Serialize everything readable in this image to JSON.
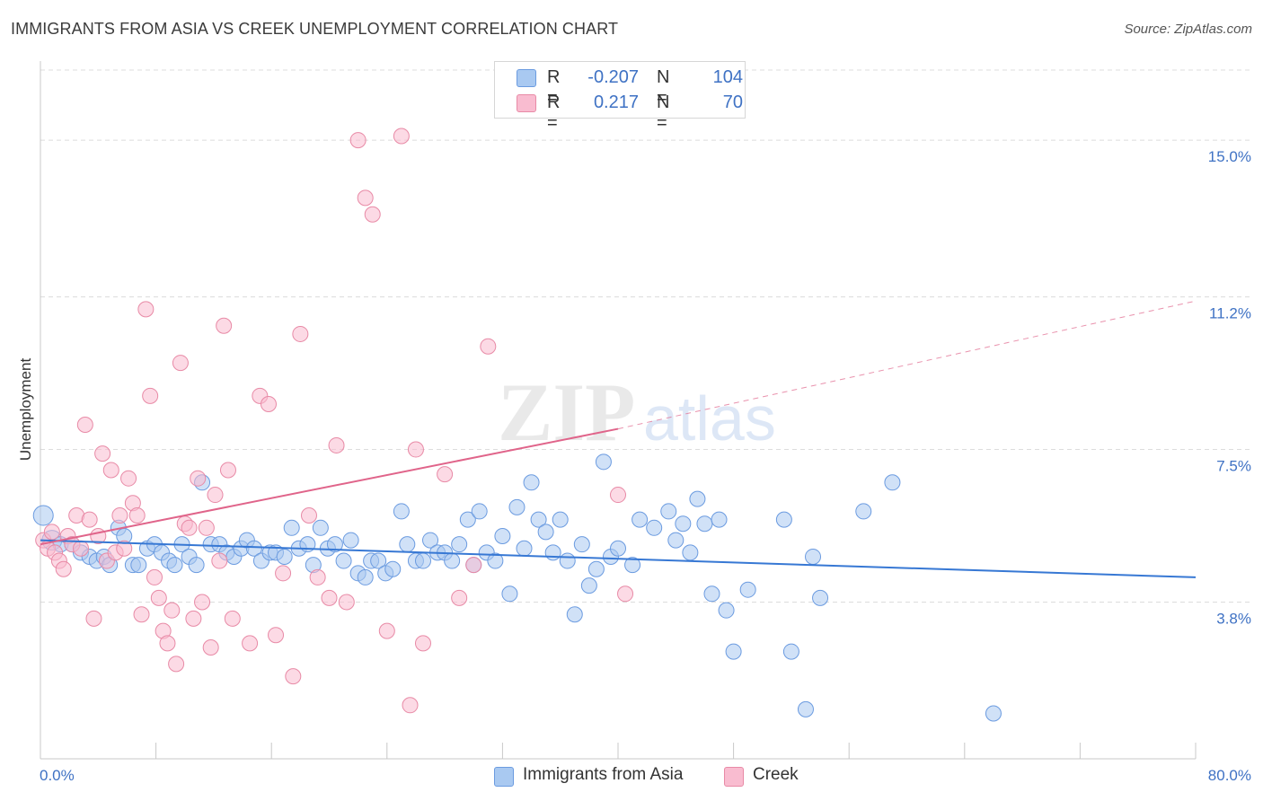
{
  "title": "IMMIGRANTS FROM ASIA VS CREEK UNEMPLOYMENT CORRELATION CHART",
  "source": "Source: ZipAtlas.com",
  "watermark": {
    "zip": "ZIP",
    "atlas": "atlas"
  },
  "legend": {
    "r_key": "R =",
    "n_key": "N =",
    "rows": [
      {
        "name": "Immigrants from Asia",
        "r": "-0.207",
        "n": "104",
        "color": "#a9c9f1",
        "border": "#6b9be0"
      },
      {
        "name": "Creek",
        "r": "0.217",
        "n": "70",
        "color": "#f9bcd0",
        "border": "#e88aa6"
      }
    ]
  },
  "chart_data": {
    "type": "scatter",
    "title": "IMMIGRANTS FROM ASIA VS CREEK UNEMPLOYMENT CORRELATION CHART",
    "xlabel": "",
    "ylabel": "Unemployment",
    "xlim": [
      0,
      80
    ],
    "ylim": [
      0,
      16
    ],
    "x_tick_labels": [
      "0.0%",
      "80.0%"
    ],
    "y_ticks": [
      3.8,
      7.5,
      11.2,
      15.0
    ],
    "y_tick_labels": [
      "3.8%",
      "7.5%",
      "11.2%",
      "15.0%"
    ],
    "grid": "horizontal dashed",
    "legend_position": "top-center and bottom",
    "series": [
      {
        "name": "Immigrants from Asia",
        "color": "#6b9be0",
        "fill": "#a9c9f1",
        "line_color": "#3778d4",
        "trend": {
          "x0": 0,
          "y0": 5.3,
          "x1": 80,
          "y1": 4.4,
          "dashed_from": 80
        },
        "points": [
          [
            0.2,
            5.9
          ],
          [
            0.8,
            5.3
          ],
          [
            1.4,
            5.2
          ],
          [
            2.2,
            5.2
          ],
          [
            2.8,
            5.0
          ],
          [
            3.4,
            4.9
          ],
          [
            3.9,
            4.8
          ],
          [
            4.4,
            4.9
          ],
          [
            4.8,
            4.7
          ],
          [
            5.4,
            5.6
          ],
          [
            5.8,
            5.4
          ],
          [
            6.4,
            4.7
          ],
          [
            6.8,
            4.7
          ],
          [
            7.4,
            5.1
          ],
          [
            7.9,
            5.2
          ],
          [
            8.4,
            5.0
          ],
          [
            8.9,
            4.8
          ],
          [
            9.3,
            4.7
          ],
          [
            9.8,
            5.2
          ],
          [
            10.3,
            4.9
          ],
          [
            10.8,
            4.7
          ],
          [
            11.2,
            6.7
          ],
          [
            11.8,
            5.2
          ],
          [
            12.4,
            5.2
          ],
          [
            12.9,
            5.0
          ],
          [
            13.4,
            4.9
          ],
          [
            13.9,
            5.1
          ],
          [
            14.3,
            5.3
          ],
          [
            14.8,
            5.1
          ],
          [
            15.3,
            4.8
          ],
          [
            15.9,
            5.0
          ],
          [
            16.3,
            5.0
          ],
          [
            16.9,
            4.9
          ],
          [
            17.4,
            5.6
          ],
          [
            17.9,
            5.1
          ],
          [
            18.5,
            5.2
          ],
          [
            18.9,
            4.7
          ],
          [
            19.4,
            5.6
          ],
          [
            19.9,
            5.1
          ],
          [
            20.4,
            5.2
          ],
          [
            21.0,
            4.8
          ],
          [
            21.5,
            5.3
          ],
          [
            22.0,
            4.5
          ],
          [
            22.5,
            4.4
          ],
          [
            22.9,
            4.8
          ],
          [
            23.4,
            4.8
          ],
          [
            23.9,
            4.5
          ],
          [
            24.4,
            4.6
          ],
          [
            25.0,
            6.0
          ],
          [
            25.4,
            5.2
          ],
          [
            26.0,
            4.8
          ],
          [
            26.5,
            4.8
          ],
          [
            27.0,
            5.3
          ],
          [
            27.5,
            5.0
          ],
          [
            28.0,
            5.0
          ],
          [
            28.5,
            4.8
          ],
          [
            29.0,
            5.2
          ],
          [
            29.6,
            5.8
          ],
          [
            30.0,
            4.7
          ],
          [
            30.4,
            6.0
          ],
          [
            30.9,
            5.0
          ],
          [
            31.5,
            4.8
          ],
          [
            32.0,
            5.4
          ],
          [
            32.5,
            4.0
          ],
          [
            33.0,
            6.1
          ],
          [
            33.5,
            5.1
          ],
          [
            34.0,
            6.7
          ],
          [
            34.5,
            5.8
          ],
          [
            35.0,
            5.5
          ],
          [
            35.5,
            5.0
          ],
          [
            36.0,
            5.8
          ],
          [
            36.5,
            4.8
          ],
          [
            37.0,
            3.5
          ],
          [
            37.5,
            5.2
          ],
          [
            38.0,
            4.2
          ],
          [
            38.5,
            4.6
          ],
          [
            39.0,
            7.2
          ],
          [
            39.5,
            4.9
          ],
          [
            40.0,
            5.1
          ],
          [
            41.0,
            4.7
          ],
          [
            41.5,
            5.8
          ],
          [
            42.5,
            5.6
          ],
          [
            43.5,
            6.0
          ],
          [
            44.0,
            5.3
          ],
          [
            44.5,
            5.7
          ],
          [
            45.0,
            5.0
          ],
          [
            45.5,
            6.3
          ],
          [
            46.0,
            5.7
          ],
          [
            46.5,
            4.0
          ],
          [
            47.0,
            5.8
          ],
          [
            47.5,
            3.6
          ],
          [
            48.0,
            2.6
          ],
          [
            49.0,
            4.1
          ],
          [
            51.5,
            5.8
          ],
          [
            52.0,
            2.6
          ],
          [
            53.0,
            1.2
          ],
          [
            53.5,
            4.9
          ],
          [
            54.0,
            3.9
          ],
          [
            57.0,
            6.0
          ],
          [
            59.0,
            6.7
          ],
          [
            66.0,
            1.1
          ]
        ]
      },
      {
        "name": "Creek",
        "color": "#e88aa6",
        "fill": "#f9bcd0",
        "line_color": "#e0648a",
        "trend": {
          "x0": 0,
          "y0": 5.2,
          "x1": 40,
          "y1": 8.0,
          "dashed_to": 80,
          "y_end": 11.1
        },
        "points": [
          [
            0.2,
            5.3
          ],
          [
            0.5,
            5.1
          ],
          [
            0.8,
            5.5
          ],
          [
            1.0,
            5.0
          ],
          [
            1.3,
            4.8
          ],
          [
            1.6,
            4.6
          ],
          [
            1.9,
            5.4
          ],
          [
            2.2,
            5.2
          ],
          [
            2.5,
            5.9
          ],
          [
            2.8,
            5.1
          ],
          [
            3.1,
            8.1
          ],
          [
            3.4,
            5.8
          ],
          [
            3.7,
            3.4
          ],
          [
            4.0,
            5.4
          ],
          [
            4.3,
            7.4
          ],
          [
            4.6,
            4.8
          ],
          [
            4.9,
            7.0
          ],
          [
            5.2,
            5.0
          ],
          [
            5.5,
            5.9
          ],
          [
            5.8,
            5.1
          ],
          [
            6.1,
            6.8
          ],
          [
            6.4,
            6.2
          ],
          [
            6.7,
            5.9
          ],
          [
            7.0,
            3.5
          ],
          [
            7.3,
            10.9
          ],
          [
            7.6,
            8.8
          ],
          [
            7.9,
            4.4
          ],
          [
            8.2,
            3.9
          ],
          [
            8.5,
            3.1
          ],
          [
            8.8,
            2.8
          ],
          [
            9.1,
            3.6
          ],
          [
            9.4,
            2.3
          ],
          [
            9.7,
            9.6
          ],
          [
            10.0,
            5.7
          ],
          [
            10.3,
            5.6
          ],
          [
            10.6,
            3.4
          ],
          [
            10.9,
            6.8
          ],
          [
            11.2,
            3.8
          ],
          [
            11.5,
            5.6
          ],
          [
            11.8,
            2.7
          ],
          [
            12.1,
            6.4
          ],
          [
            12.4,
            4.8
          ],
          [
            12.7,
            10.5
          ],
          [
            13.0,
            7.0
          ],
          [
            13.3,
            3.4
          ],
          [
            14.5,
            2.8
          ],
          [
            15.2,
            8.8
          ],
          [
            15.8,
            8.6
          ],
          [
            16.3,
            3.0
          ],
          [
            16.8,
            4.5
          ],
          [
            17.5,
            2.0
          ],
          [
            18.0,
            10.3
          ],
          [
            18.6,
            5.9
          ],
          [
            19.2,
            4.4
          ],
          [
            20.0,
            3.9
          ],
          [
            20.5,
            7.6
          ],
          [
            21.2,
            3.8
          ],
          [
            22.0,
            15.0
          ],
          [
            22.5,
            13.6
          ],
          [
            23.0,
            13.2
          ],
          [
            24.0,
            3.1
          ],
          [
            25.0,
            15.1
          ],
          [
            25.6,
            1.3
          ],
          [
            26.0,
            7.5
          ],
          [
            26.5,
            2.8
          ],
          [
            28.0,
            6.9
          ],
          [
            29.0,
            3.9
          ],
          [
            30.0,
            4.7
          ],
          [
            31.0,
            10.0
          ],
          [
            40.0,
            6.4
          ],
          [
            40.5,
            4.0
          ]
        ]
      }
    ]
  }
}
